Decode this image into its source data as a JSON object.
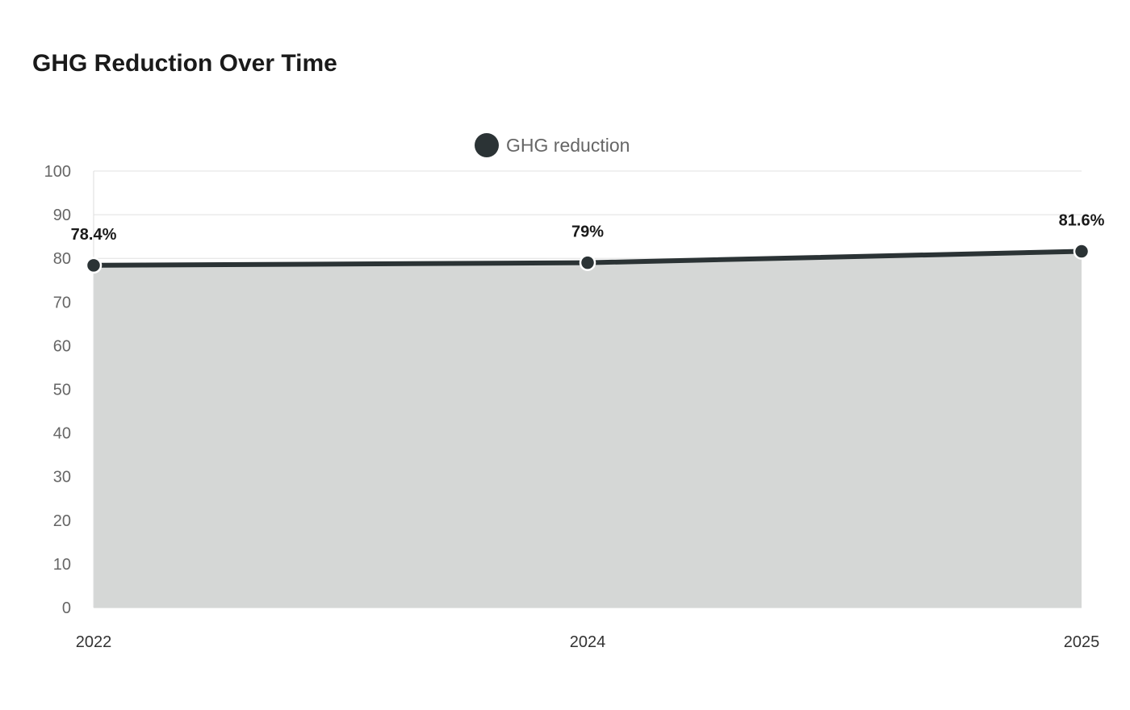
{
  "chart_data": {
    "type": "area",
    "title": "GHG Reduction Over Time",
    "xlabel": "",
    "ylabel": "",
    "categories": [
      "2022",
      "2024",
      "2025"
    ],
    "series": [
      {
        "name": "GHG reduction",
        "values": [
          78.4,
          79,
          81.6
        ],
        "data_labels": [
          "78.4%",
          "79%",
          "81.6%"
        ]
      }
    ],
    "ylim": [
      0,
      100
    ],
    "yticks": [
      0,
      10,
      20,
      30,
      40,
      50,
      60,
      70,
      80,
      90,
      100
    ],
    "grid": true,
    "legend": "top-center",
    "colors": {
      "line": "#2b3335",
      "area": "#d5d7d6",
      "grid": "#e0e0e0"
    }
  }
}
